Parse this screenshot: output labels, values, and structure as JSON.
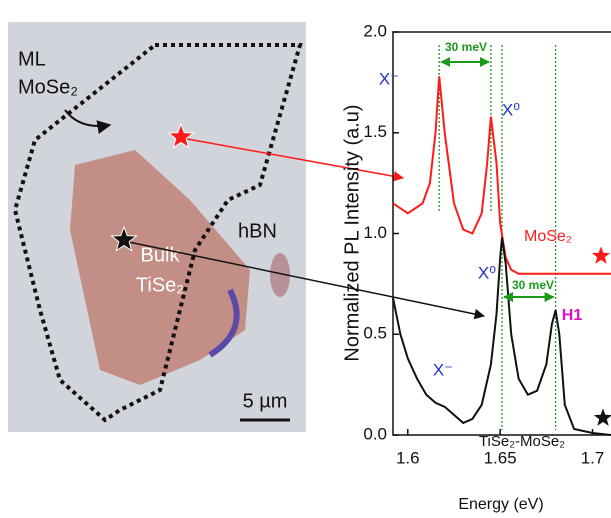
{
  "chart_data": {
    "type": "line",
    "xlabel": "Energy (eV)",
    "ylabel": "Normalized PL Intensity (a.u)",
    "xlim": [
      1.592,
      1.71
    ],
    "xticks": [
      1.6,
      1.65,
      1.7
    ],
    "ylim": [
      0,
      2.0
    ],
    "yticks": [
      {
        "value": 0,
        "label": "0.0"
      },
      {
        "value": 0.5,
        "label": "0.5"
      },
      {
        "value": 1.0,
        "label": "1.0"
      },
      {
        "value": 1.5,
        "label": "1.5"
      },
      {
        "value": 2.0,
        "label": "2.0"
      }
    ],
    "series": [
      {
        "name": "MoSe₂",
        "color": "#ff1a1a",
        "x": [
          1.592,
          1.6,
          1.608,
          1.612,
          1.615,
          1.617,
          1.62,
          1.625,
          1.63,
          1.635,
          1.64,
          1.643,
          1.645,
          1.648,
          1.65,
          1.653,
          1.656,
          1.66,
          1.71
        ],
        "values": [
          1.15,
          1.1,
          1.15,
          1.25,
          1.5,
          1.78,
          1.5,
          1.15,
          1.02,
          1.0,
          1.1,
          1.35,
          1.58,
          1.35,
          1.05,
          0.88,
          0.82,
          0.8,
          0.8
        ]
      },
      {
        "name": "TiSe₂-MoSe₂",
        "color": "#111111",
        "x": [
          1.592,
          1.596,
          1.6,
          1.605,
          1.61,
          1.615,
          1.62,
          1.625,
          1.63,
          1.635,
          1.64,
          1.645,
          1.648,
          1.65,
          1.651,
          1.653,
          1.656,
          1.66,
          1.665,
          1.67,
          1.675,
          1.678,
          1.68,
          1.682,
          1.685,
          1.69,
          1.7,
          1.71
        ],
        "values": [
          0.68,
          0.5,
          0.38,
          0.28,
          0.2,
          0.16,
          0.14,
          0.1,
          0.06,
          0.08,
          0.15,
          0.35,
          0.6,
          0.88,
          0.98,
          0.85,
          0.5,
          0.28,
          0.2,
          0.22,
          0.35,
          0.55,
          0.62,
          0.5,
          0.15,
          0.03,
          0.01,
          0.0
        ]
      }
    ],
    "annotations": [
      "30 meV",
      "X⁻",
      "X⁰",
      "X⁰",
      "30 meV",
      "X⁻",
      "H1"
    ]
  },
  "image": {
    "labels": [
      "ML",
      "MoSe₂",
      "hBN",
      "Bulk",
      "TiSe₂",
      "5 µm"
    ]
  }
}
